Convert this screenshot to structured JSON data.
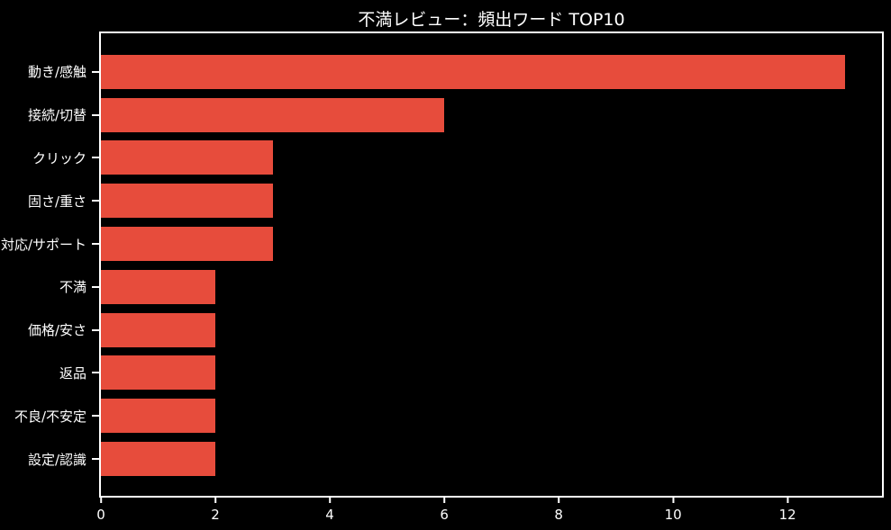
{
  "chart_data": {
    "type": "bar",
    "orientation": "horizontal",
    "title": "不満レビュー：頻出ワード TOP10",
    "categories": [
      "動き/感触",
      "接続/切替",
      "クリック",
      "固さ/重さ",
      "対応/サポート",
      "不満",
      "価格/安さ",
      "返品",
      "不良/不安定",
      "設定/認識"
    ],
    "values": [
      13,
      6,
      3,
      3,
      3,
      2,
      2,
      2,
      2,
      2
    ],
    "xlabel": "",
    "ylabel": "",
    "xlim": [
      0,
      13.65
    ],
    "xticks": [
      0,
      2,
      4,
      6,
      8,
      10,
      12
    ],
    "grid": false,
    "legend": null
  },
  "colors": {
    "background": "#000000",
    "bar": "#e74c3c",
    "text": "#ffffff",
    "spine": "#ffffff"
  }
}
